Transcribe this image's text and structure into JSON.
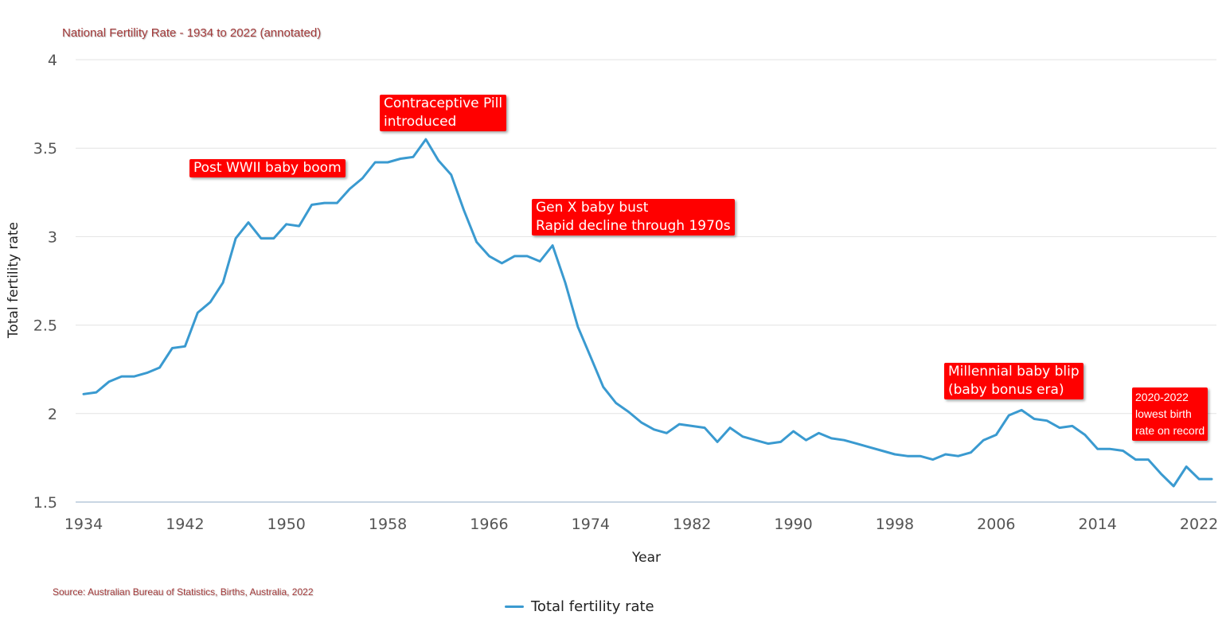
{
  "chart_data": {
    "type": "line",
    "title": "National Fertility Rate - 1934 to 2022 (annotated)",
    "source": "Source: Australian Bureau of Statistics, Births, Australia, 2022",
    "xlabel": "Year",
    "ylabel": "Total fertility rate",
    "xlim": [
      1934,
      2023
    ],
    "ylim": [
      1.5,
      4
    ],
    "x_ticks": [
      1934,
      1942,
      1950,
      1958,
      1966,
      1974,
      1982,
      1990,
      1998,
      2006,
      2014,
      2022
    ],
    "y_ticks": [
      1.5,
      2,
      2.5,
      3,
      3.5,
      4
    ],
    "y_tick_labels": [
      "1.5",
      "2",
      "2.5",
      "3",
      "3.5",
      "4"
    ],
    "grid": true,
    "legend_position": "bottom-center",
    "series": [
      {
        "name": "Total fertility rate",
        "color": "#3a9ad0",
        "x": [
          1934,
          1935,
          1936,
          1937,
          1938,
          1939,
          1940,
          1941,
          1942,
          1943,
          1944,
          1945,
          1946,
          1947,
          1948,
          1949,
          1950,
          1951,
          1952,
          1953,
          1954,
          1955,
          1956,
          1957,
          1958,
          1959,
          1960,
          1961,
          1962,
          1963,
          1964,
          1965,
          1966,
          1967,
          1968,
          1969,
          1970,
          1971,
          1972,
          1973,
          1974,
          1975,
          1976,
          1977,
          1978,
          1979,
          1980,
          1981,
          1982,
          1983,
          1984,
          1985,
          1986,
          1987,
          1988,
          1989,
          1990,
          1991,
          1992,
          1993,
          1994,
          1995,
          1996,
          1997,
          1998,
          1999,
          2000,
          2001,
          2002,
          2003,
          2004,
          2005,
          2006,
          2007,
          2008,
          2009,
          2010,
          2011,
          2012,
          2013,
          2014,
          2015,
          2016,
          2017,
          2018,
          2019,
          2020,
          2021,
          2022,
          2023
        ],
        "values": [
          2.11,
          2.12,
          2.18,
          2.21,
          2.21,
          2.23,
          2.26,
          2.37,
          2.38,
          2.57,
          2.63,
          2.74,
          2.99,
          3.08,
          2.99,
          2.99,
          3.07,
          3.06,
          3.18,
          3.19,
          3.19,
          3.27,
          3.33,
          3.42,
          3.42,
          3.44,
          3.45,
          3.55,
          3.43,
          3.35,
          3.15,
          2.97,
          2.89,
          2.85,
          2.89,
          2.89,
          2.86,
          2.95,
          2.74,
          2.49,
          2.32,
          2.15,
          2.06,
          2.01,
          1.95,
          1.91,
          1.89,
          1.94,
          1.93,
          1.92,
          1.84,
          1.92,
          1.87,
          1.85,
          1.83,
          1.84,
          1.9,
          1.85,
          1.89,
          1.86,
          1.85,
          1.83,
          1.81,
          1.79,
          1.77,
          1.76,
          1.76,
          1.74,
          1.77,
          1.76,
          1.78,
          1.85,
          1.88,
          1.99,
          2.02,
          1.97,
          1.96,
          1.92,
          1.93,
          1.88,
          1.8,
          1.8,
          1.79,
          1.74,
          1.74,
          1.66,
          1.59,
          1.7,
          1.63,
          1.63
        ]
      }
    ],
    "annotations": [
      {
        "text": "Post WWII baby boom"
      },
      {
        "text": "Contraceptive Pill\nintroduced"
      },
      {
        "text": "Gen X baby bust\nRapid decline through 1970s"
      },
      {
        "text": "Millennial baby blip\n(baby bonus era)"
      },
      {
        "text": "2020-2022\nlowest birth\nrate on record"
      }
    ]
  }
}
